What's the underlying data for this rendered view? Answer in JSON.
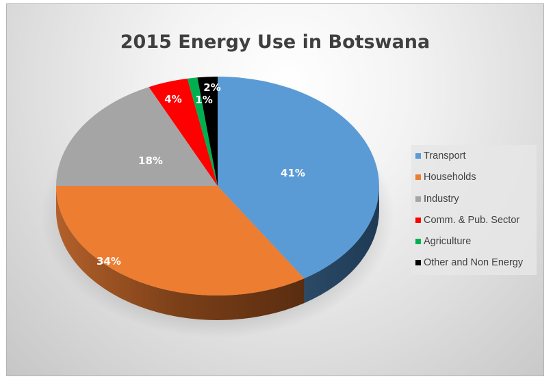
{
  "chart": {
    "title": "2015 Energy Use in Botswana"
  },
  "legend": {
    "items": [
      {
        "label": "Transport",
        "color": "#5B9BD5"
      },
      {
        "label": "Households",
        "color": "#ED7D31"
      },
      {
        "label": "Industry",
        "color": "#A5A5A5"
      },
      {
        "label": "Comm. & Pub. Sector",
        "color": "#FF0000"
      },
      {
        "label": "Agriculture",
        "color": "#00B050"
      },
      {
        "label": "Other and Non Energy",
        "color": "#000000"
      }
    ]
  },
  "labels": {
    "transport": "41%",
    "households": "34%",
    "industry": "18%",
    "comm": "4%",
    "agriculture": "1%",
    "other": "2%"
  },
  "chart_data": {
    "type": "pie",
    "title": "2015 Energy Use in Botswana",
    "categories": [
      "Transport",
      "Households",
      "Industry",
      "Comm. & Pub. Sector",
      "Agriculture",
      "Other and Non Energy"
    ],
    "values": [
      41,
      34,
      18,
      4,
      1,
      2
    ],
    "unit": "%",
    "colors": [
      "#5B9BD5",
      "#ED7D31",
      "#A5A5A5",
      "#FF0000",
      "#00B050",
      "#000000"
    ],
    "style": "3d",
    "legend_position": "right",
    "data_labels": "percentage"
  }
}
